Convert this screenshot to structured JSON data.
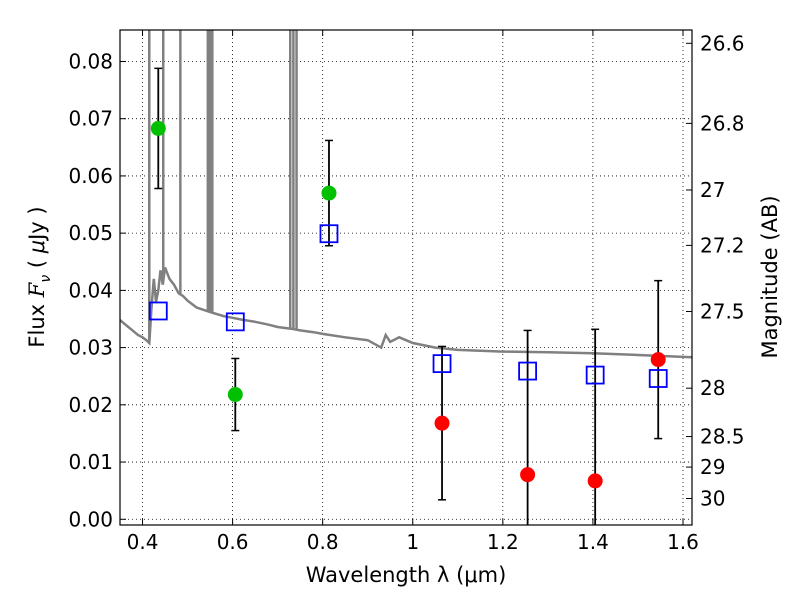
{
  "chart_data": {
    "type": "scatter",
    "xlabel": "Wavelength  λ (μm)",
    "ylabel": "Flux  F_ν  ( μJy )",
    "ylabel_parts": [
      "Flux  ",
      "F",
      "ν",
      "  ( ",
      "μ",
      "Jy )"
    ],
    "y2label": "Magnitude (AB)",
    "xlim": [
      0.35,
      1.62
    ],
    "ylim": [
      -0.001,
      0.0855
    ],
    "grid": true,
    "x_ticks": [
      0.4,
      0.6,
      0.8,
      1.0,
      1.2,
      1.4,
      1.6
    ],
    "x_tick_labels": [
      "0.4",
      "0.6",
      "0.8",
      "1",
      "1.2",
      "1.4",
      "1.6"
    ],
    "y_ticks": [
      0.0,
      0.01,
      0.02,
      0.03,
      0.04,
      0.05,
      0.06,
      0.07,
      0.08
    ],
    "y_tick_labels": [
      "0.00",
      "0.01",
      "0.02",
      "0.03",
      "0.04",
      "0.05",
      "0.06",
      "0.07",
      "0.08"
    ],
    "mag_ticks": [
      26.6,
      26.8,
      27.0,
      27.2,
      27.5,
      28.0,
      28.5,
      29.0,
      30.0
    ],
    "mag_tick_labels": [
      "26.6",
      "26.8",
      "27",
      "27.2",
      "27.5",
      "28",
      "28.5",
      "29",
      "30"
    ],
    "colors": {
      "model": "#808080",
      "detected": "#00c000",
      "upper_limit": "#ff0000",
      "model_band": "#0000ff",
      "errorbar": "#000000"
    },
    "series": [
      {
        "marker": "circle",
        "color_key": "detected",
        "points": [
          {
            "x": 0.435,
            "y": 0.0683,
            "err": 0.0105
          },
          {
            "x": 0.606,
            "y": 0.0218,
            "err": 0.0063
          },
          {
            "x": 0.814,
            "y": 0.057,
            "err": 0.0092
          }
        ]
      },
      {
        "marker": "circle",
        "color_key": "upper_limit",
        "points": [
          {
            "x": 1.065,
            "y": 0.0168,
            "err": 0.0134
          },
          {
            "x": 1.255,
            "y": 0.0078,
            "err": 0.0252
          },
          {
            "x": 1.405,
            "y": 0.0067,
            "err": 0.0265
          },
          {
            "x": 1.545,
            "y": 0.0279,
            "err": 0.0138
          }
        ]
      },
      {
        "marker": "open-square",
        "color_key": "model_band",
        "points": [
          {
            "x": 0.435,
            "y": 0.0364
          },
          {
            "x": 0.606,
            "y": 0.0345
          },
          {
            "x": 0.814,
            "y": 0.0499
          },
          {
            "x": 1.065,
            "y": 0.0272
          },
          {
            "x": 1.255,
            "y": 0.0259
          },
          {
            "x": 1.405,
            "y": 0.0252
          },
          {
            "x": 1.545,
            "y": 0.0246
          }
        ]
      },
      {
        "marker": "line",
        "color_key": "model",
        "x": [
          0.35,
          0.37,
          0.39,
          0.4,
          0.41,
          0.415,
          0.42,
          0.425,
          0.43,
          0.435,
          0.44,
          0.445,
          0.45,
          0.46,
          0.47,
          0.48,
          0.49,
          0.5,
          0.52,
          0.55,
          0.58,
          0.6,
          0.62,
          0.65,
          0.68,
          0.7,
          0.73,
          0.75,
          0.78,
          0.8,
          0.85,
          0.9,
          0.93,
          0.94,
          0.95,
          0.97,
          1.0,
          1.05,
          1.1,
          1.2,
          1.3,
          1.4,
          1.5,
          1.62
        ],
        "y": [
          0.0348,
          0.0335,
          0.0322,
          0.0318,
          0.0312,
          0.0308,
          0.037,
          0.042,
          0.038,
          0.04,
          0.0435,
          0.041,
          0.044,
          0.042,
          0.041,
          0.0395,
          0.039,
          0.0382,
          0.037,
          0.0362,
          0.0355,
          0.0352,
          0.0349,
          0.0345,
          0.034,
          0.0336,
          0.0333,
          0.033,
          0.0327,
          0.0324,
          0.0318,
          0.0313,
          0.03,
          0.0322,
          0.031,
          0.0318,
          0.0308,
          0.03,
          0.0296,
          0.0293,
          0.0292,
          0.029,
          0.0287,
          0.0283
        ],
        "emission_lines": [
          {
            "x": 0.415,
            "y": 0.0855
          },
          {
            "x": 0.446,
            "y": 0.0855
          },
          {
            "x": 0.484,
            "y": 0.0855
          },
          {
            "x": 0.545,
            "y": 0.0855
          },
          {
            "x": 0.55,
            "y": 0.0855
          },
          {
            "x": 0.555,
            "y": 0.0855
          },
          {
            "x": 0.728,
            "y": 0.0855
          },
          {
            "x": 0.735,
            "y": 0.0855
          },
          {
            "x": 0.742,
            "y": 0.0855
          }
        ]
      }
    ]
  }
}
